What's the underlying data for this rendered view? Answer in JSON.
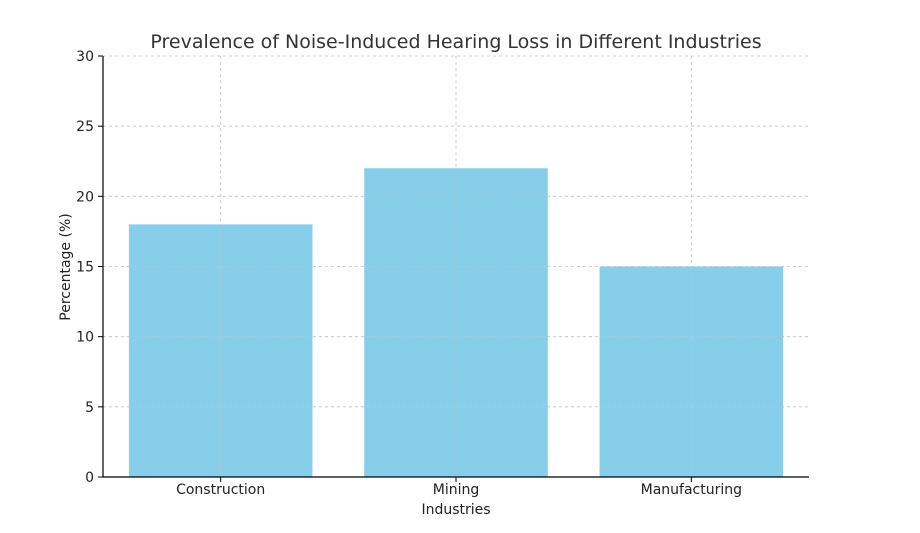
{
  "chart_data": {
    "type": "bar",
    "title": "Prevalence of Noise-Induced Hearing Loss in Different Industries",
    "xlabel": "Industries",
    "ylabel": "Percentage (%)",
    "categories": [
      "Construction",
      "Mining",
      "Manufacturing"
    ],
    "values": [
      18,
      22,
      15
    ],
    "ylim": [
      0,
      30
    ],
    "yticks": [
      0,
      5,
      10,
      15,
      20,
      25,
      30
    ],
    "grid": true,
    "bar_color": "#87ceeb"
  }
}
